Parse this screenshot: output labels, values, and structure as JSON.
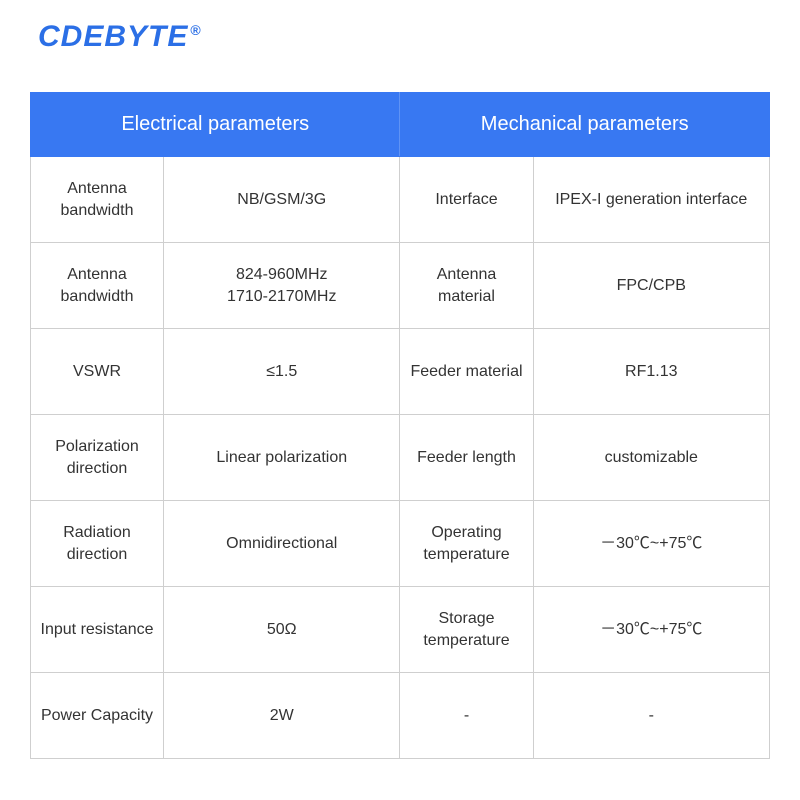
{
  "brand": {
    "name": "CDEBYTE",
    "mark": "®",
    "color": "#2b6fe6"
  },
  "table": {
    "header_bg": "#3878f2",
    "header_text_color": "#ffffff",
    "border_color": "#cfcfcf",
    "text_color": "#333333",
    "header_left": "Electrical parameters",
    "header_right": "Mechanical parameters",
    "column_widths_pct": [
      18,
      32,
      18,
      32
    ],
    "rows": [
      {
        "elec_label": "Antenna\nbandwidth",
        "elec_value": "NB/GSM/3G",
        "mech_label": "Interface",
        "mech_value": "IPEX-I generation interface"
      },
      {
        "elec_label": "Antenna\nbandwidth",
        "elec_value": "824-960MHz\n1710-2170MHz",
        "mech_label": "Antenna\nmaterial",
        "mech_value": "FPC/CPB"
      },
      {
        "elec_label": "VSWR",
        "elec_value": "≤1.5",
        "mech_label": "Feeder material",
        "mech_value": "RF1.13"
      },
      {
        "elec_label": "Polarization\ndirection",
        "elec_value": "Linear polarization",
        "mech_label": "Feeder length",
        "mech_value": "customizable"
      },
      {
        "elec_label": "Radiation\ndirection",
        "elec_value": "Omnidirectional",
        "mech_label": "Operating\ntemperature",
        "mech_value": "－30℃~+75℃"
      },
      {
        "elec_label": "Input resistance",
        "elec_value": "50Ω",
        "mech_label": "Storage\ntemperature",
        "mech_value": "－30℃~+75℃"
      },
      {
        "elec_label": "Power Capacity",
        "elec_value": "2W",
        "mech_label": "-",
        "mech_value": "-"
      }
    ]
  }
}
